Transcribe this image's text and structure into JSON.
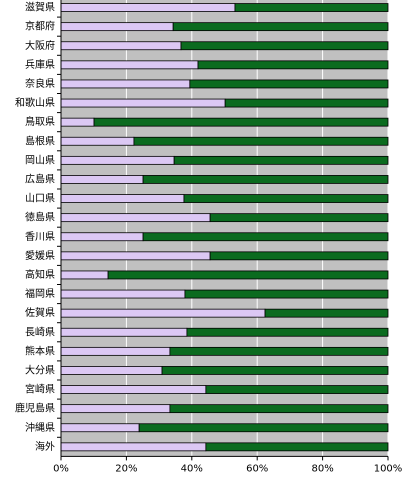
{
  "chart_data": {
    "type": "stacked-barh",
    "categories": [
      "滋賀県",
      "京都府",
      "大阪府",
      "兵庫県",
      "奈良県",
      "和歌山県",
      "鳥取県",
      "島根県",
      "岡山県",
      "広島県",
      "山口県",
      "徳島県",
      "香川県",
      "愛媛県",
      "高知県",
      "福岡県",
      "佐賀県",
      "長崎県",
      "熊本県",
      "大分県",
      "宮崎県",
      "鹿児島県",
      "沖縄県",
      "海外"
    ],
    "series": [
      {
        "color": "#dcc8f4",
        "values": [
          53.2,
          34.3,
          36.7,
          41.9,
          39.4,
          50.2,
          10.1,
          22.3,
          34.6,
          25.1,
          37.6,
          45.6,
          25.1,
          45.6,
          14.4,
          37.9,
          62.4,
          38.5,
          33.3,
          30.9,
          44.3,
          33.3,
          23.9,
          44.3
        ]
      },
      {
        "color": "#0b6b1f",
        "values": [
          46.8,
          65.7,
          63.3,
          58.1,
          60.6,
          49.8,
          89.9,
          77.7,
          65.4,
          74.9,
          62.4,
          54.4,
          74.9,
          54.4,
          85.6,
          62.1,
          37.6,
          61.5,
          66.7,
          69.1,
          55.7,
          66.7,
          76.1,
          55.7
        ]
      }
    ],
    "xlim": [
      0,
      100
    ],
    "xticks": [
      {
        "value": 0,
        "label": "0%"
      },
      {
        "value": 20,
        "label": "20%"
      },
      {
        "value": 40,
        "label": "40%"
      },
      {
        "value": 60,
        "label": "60%"
      },
      {
        "value": 80,
        "label": "80%"
      },
      {
        "value": 100,
        "label": "100%"
      }
    ],
    "grid": true
  }
}
